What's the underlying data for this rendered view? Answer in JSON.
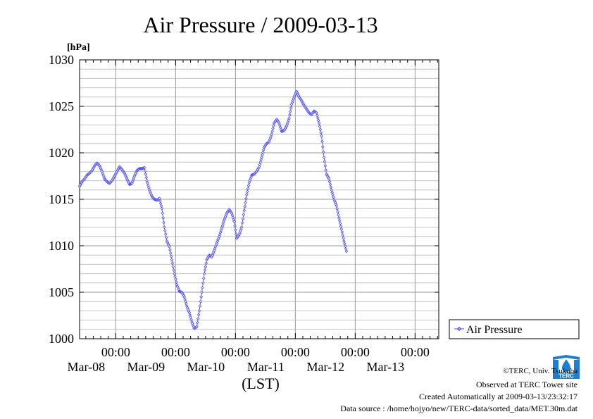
{
  "chart_data": {
    "type": "line",
    "title": "Air Pressure / 2009-03-13",
    "ylabel": "[hPa]",
    "xlabel": "(LST)",
    "ylim": [
      1000,
      1030
    ],
    "yticks": [
      1000,
      1005,
      1010,
      1015,
      1020,
      1025,
      1030
    ],
    "xlim_hours": [
      0,
      144
    ],
    "x_start": "2009-03-07 09:30",
    "x_end": "2009-03-13 23:30",
    "xticks": [
      {
        "time": "00:00",
        "date": "Mar-08",
        "hour": 14.5
      },
      {
        "time": "00:00",
        "date": "Mar-09",
        "hour": 38.5
      },
      {
        "time": "00:00",
        "date": "Mar-10",
        "hour": 62.5
      },
      {
        "time": "00:00",
        "date": "Mar-11",
        "hour": 86.5
      },
      {
        "time": "00:00",
        "date": "Mar-12",
        "hour": 110.5
      },
      {
        "time": "00:00",
        "date": "Mar-13",
        "hour": 134.5
      }
    ],
    "grid": true,
    "legend_position": "right",
    "series": [
      {
        "name": "Air Pressure",
        "color": "#4b4bff",
        "marker": "diamond",
        "points": [
          [
            0,
            1016.4
          ],
          [
            1,
            1016.9
          ],
          [
            2,
            1017.2
          ],
          [
            3,
            1017.6
          ],
          [
            4,
            1017.8
          ],
          [
            5,
            1018.1
          ],
          [
            6,
            1018.6
          ],
          [
            7,
            1018.9
          ],
          [
            8,
            1018.6
          ],
          [
            9,
            1018.0
          ],
          [
            10,
            1017.2
          ],
          [
            11,
            1016.9
          ],
          [
            12,
            1016.7
          ],
          [
            13,
            1017.0
          ],
          [
            14,
            1017.5
          ],
          [
            15,
            1018.0
          ],
          [
            16,
            1018.5
          ],
          [
            17,
            1018.2
          ],
          [
            18,
            1017.8
          ],
          [
            19,
            1017.2
          ],
          [
            20,
            1016.6
          ],
          [
            21,
            1016.7
          ],
          [
            22,
            1017.5
          ],
          [
            23,
            1018.1
          ],
          [
            24,
            1018.3
          ],
          [
            25,
            1018.3
          ],
          [
            26,
            1018.4
          ],
          [
            27,
            1017.0
          ],
          [
            28,
            1016.0
          ],
          [
            29,
            1015.3
          ],
          [
            30,
            1015.0
          ],
          [
            31,
            1014.9
          ],
          [
            32,
            1015.1
          ],
          [
            33,
            1014.0
          ],
          [
            34,
            1012.0
          ],
          [
            35,
            1010.5
          ],
          [
            36,
            1009.9
          ],
          [
            37,
            1008.5
          ],
          [
            38,
            1007.0
          ],
          [
            39,
            1005.8
          ],
          [
            40,
            1005.1
          ],
          [
            41,
            1005.0
          ],
          [
            42,
            1004.5
          ],
          [
            43,
            1003.5
          ],
          [
            44,
            1002.8
          ],
          [
            45,
            1001.8
          ],
          [
            46,
            1001.1
          ],
          [
            47,
            1001.3
          ],
          [
            48,
            1003.0
          ],
          [
            49,
            1005.0
          ],
          [
            50,
            1007.0
          ],
          [
            51,
            1008.5
          ],
          [
            52,
            1009.0
          ],
          [
            53,
            1008.8
          ],
          [
            54,
            1009.5
          ],
          [
            55,
            1010.3
          ],
          [
            56,
            1011.0
          ],
          [
            57,
            1011.9
          ],
          [
            58,
            1012.8
          ],
          [
            59,
            1013.5
          ],
          [
            60,
            1013.9
          ],
          [
            61,
            1013.5
          ],
          [
            62,
            1012.6
          ],
          [
            63,
            1010.8
          ],
          [
            64,
            1011.2
          ],
          [
            65,
            1012.0
          ],
          [
            66,
            1013.8
          ],
          [
            67,
            1015.5
          ],
          [
            68,
            1016.8
          ],
          [
            69,
            1017.6
          ],
          [
            70,
            1017.7
          ],
          [
            71,
            1018.0
          ],
          [
            72,
            1018.5
          ],
          [
            73,
            1019.5
          ],
          [
            74,
            1020.6
          ],
          [
            75,
            1021.0
          ],
          [
            76,
            1021.2
          ],
          [
            77,
            1022.0
          ],
          [
            78,
            1023.2
          ],
          [
            79,
            1023.6
          ],
          [
            80,
            1023.2
          ],
          [
            81,
            1022.3
          ],
          [
            82,
            1022.4
          ],
          [
            83,
            1022.9
          ],
          [
            84,
            1023.7
          ],
          [
            85,
            1025.2
          ],
          [
            86,
            1026.0
          ],
          [
            87,
            1026.6
          ],
          [
            88,
            1026.0
          ],
          [
            89,
            1025.6
          ],
          [
            90,
            1025.1
          ],
          [
            91,
            1024.7
          ],
          [
            92,
            1024.3
          ],
          [
            93,
            1024.1
          ],
          [
            94,
            1024.5
          ],
          [
            95,
            1024.3
          ],
          [
            96,
            1023.2
          ],
          [
            97,
            1021.8
          ],
          [
            98,
            1019.5
          ],
          [
            99,
            1017.7
          ],
          [
            100,
            1017.2
          ],
          [
            101,
            1016.0
          ],
          [
            102,
            1015.0
          ],
          [
            103,
            1014.3
          ],
          [
            104,
            1013.0
          ],
          [
            105,
            1011.8
          ],
          [
            106,
            1010.5
          ],
          [
            107,
            1009.4
          ]
        ]
      }
    ]
  },
  "footer": {
    "copyright": "©TERC, Univ. Tsukuba",
    "observed": "Observed at TERC Tower site",
    "created": "Created Automatically at 2009-03-13/23:32:17",
    "source": "Data source : /home/hojyo/new/TERC-data/sorted_data/MET.30m.dat"
  },
  "logo": {
    "icon": "terc-logo-icon",
    "text": "TERC",
    "color": "#1e7fd0"
  }
}
